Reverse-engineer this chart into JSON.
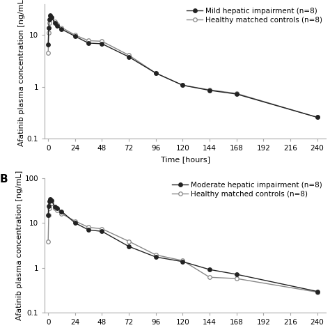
{
  "panel_A": {
    "label": "",
    "ylabel": "Afatinib plasma concentration [ng/mL]",
    "xlabel": "Time [hours]",
    "xticks": [
      0,
      24,
      48,
      72,
      96,
      120,
      144,
      168,
      192,
      216,
      240
    ],
    "xticklabels": [
      "0",
      "24",
      "48",
      "72",
      "96",
      "120",
      "144",
      "168",
      "192",
      "216",
      "240"
    ],
    "ylim": [
      0.1,
      40
    ],
    "yticks": [
      0.1,
      1,
      10
    ],
    "series1": {
      "label": "Mild hepatic impairment (n=8)",
      "color": "#222222",
      "marker": "o",
      "markersize": 4,
      "filled": true,
      "time": [
        0,
        0.5,
        1,
        2,
        3,
        6,
        8,
        12,
        24,
        36,
        48,
        72,
        96,
        120,
        144,
        168,
        240
      ],
      "conc": [
        6.5,
        14,
        20,
        24,
        22,
        17,
        15,
        13,
        9.5,
        7.0,
        6.8,
        3.8,
        1.85,
        1.08,
        0.86,
        0.73,
        0.26
      ]
    },
    "series2": {
      "label": "Healthy matched controls (n=8)",
      "color": "#888888",
      "marker": "o",
      "markersize": 4,
      "filled": false,
      "time": [
        0,
        0.5,
        1,
        2,
        3,
        6,
        8,
        12,
        24,
        36,
        48,
        72,
        96,
        120,
        144,
        168,
        240
      ],
      "conc": [
        4.5,
        11,
        17,
        23,
        22,
        18,
        16,
        14,
        10,
        7.8,
        7.6,
        4.1,
        1.85,
        1.08,
        0.88,
        0.75,
        0.26
      ]
    }
  },
  "panel_B": {
    "label": "B",
    "ylabel": "Afatinib plasma concentration [ng/mL]",
    "xlabel": "",
    "xticks": [
      0,
      24,
      48,
      72,
      96,
      120,
      144,
      168,
      192,
      216,
      240
    ],
    "xticklabels": [
      "0",
      "24",
      "48",
      "72",
      "96",
      "120",
      "144",
      "168",
      "192",
      "216",
      "240"
    ],
    "ylim": [
      0.1,
      100
    ],
    "yticks": [
      0.1,
      1,
      10,
      100
    ],
    "series1": {
      "label": "Moderate hepatic impairment (n=8)",
      "color": "#222222",
      "marker": "o",
      "markersize": 4,
      "filled": true,
      "time": [
        0,
        0.5,
        1,
        2,
        3,
        6,
        8,
        12,
        24,
        36,
        48,
        72,
        96,
        120,
        144,
        168,
        240
      ],
      "conc": [
        15,
        24,
        30,
        34,
        31,
        23,
        21,
        18,
        10,
        7.0,
        6.5,
        3.0,
        1.75,
        1.38,
        0.92,
        0.72,
        0.3
      ]
    },
    "series2": {
      "label": "Healthy matched controls (n=8)",
      "color": "#888888",
      "marker": "o",
      "markersize": 4,
      "filled": false,
      "time": [
        0,
        0.5,
        1,
        2,
        3,
        6,
        8,
        12,
        24,
        36,
        48,
        72,
        96,
        120,
        144,
        168,
        240
      ],
      "conc": [
        3.8,
        15,
        21,
        27,
        27,
        21,
        19,
        16,
        11,
        8.0,
        7.4,
        3.9,
        1.95,
        1.45,
        0.62,
        0.58,
        0.29
      ]
    }
  },
  "fig_width": 4.74,
  "fig_height": 4.74,
  "dpi": 100,
  "background_color": "#ffffff",
  "legend_fontsize": 7.5,
  "axis_fontsize": 8,
  "tick_fontsize": 7.5,
  "line_color": "#555555"
}
